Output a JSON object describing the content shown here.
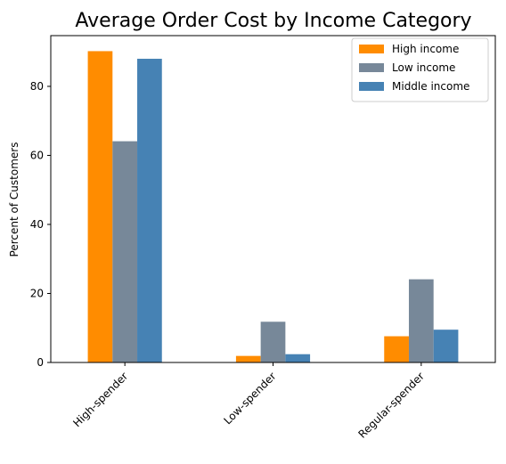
{
  "chart_data": {
    "type": "bar",
    "title": "Average Order Cost by Income Category",
    "xlabel": "",
    "ylabel": "Percent of Customers",
    "categories": [
      "High-spender",
      "Low-spender",
      "Regular-spender"
    ],
    "series": [
      {
        "name": "High income",
        "color": "#ff8c00",
        "values": [
          90.2,
          1.9,
          7.6
        ]
      },
      {
        "name": "Low income",
        "color": "#778899",
        "values": [
          64.1,
          11.8,
          24.1
        ]
      },
      {
        "name": "Middle income",
        "color": "#4682b4",
        "values": [
          88.0,
          2.4,
          9.5
        ]
      }
    ],
    "ylim": [
      0,
      94.7
    ],
    "yticks": [
      0,
      20,
      40,
      60,
      80
    ],
    "grid": false,
    "legend_position": "top-right"
  }
}
